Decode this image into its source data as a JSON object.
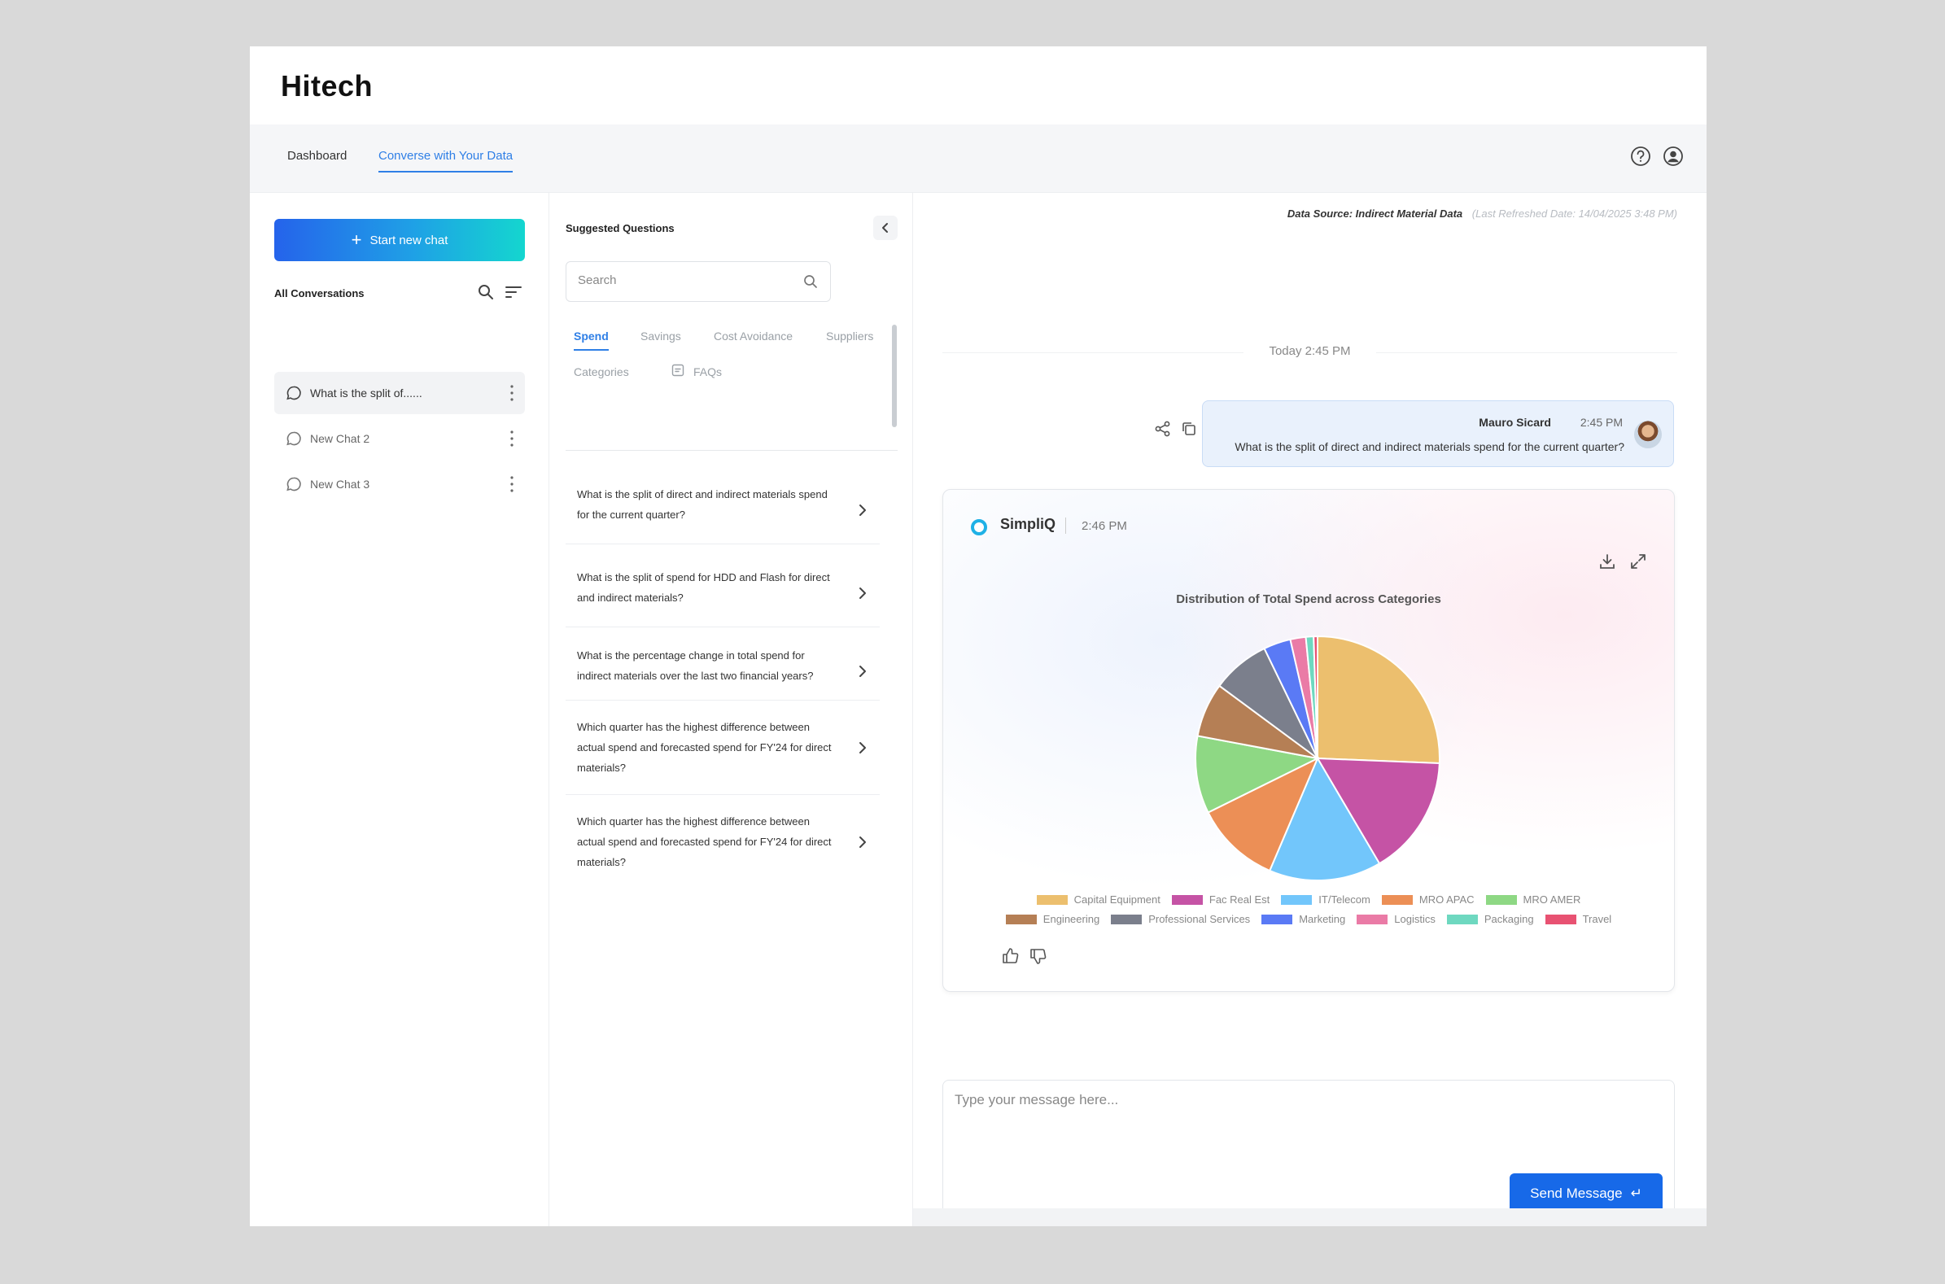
{
  "app": {
    "brand": "Hitech"
  },
  "nav": {
    "tabs": [
      {
        "label": "Dashboard",
        "active": false
      },
      {
        "label": "Converse with Your Data",
        "active": true
      }
    ],
    "icons": [
      "help-icon",
      "user-account-icon"
    ]
  },
  "sidebar": {
    "new_chat_label": "Start new chat",
    "all_conversations_label": "All Conversations",
    "conversations": [
      {
        "label": "What is the split of......",
        "active": true
      },
      {
        "label": "New Chat 2",
        "active": false
      },
      {
        "label": "New Chat 3",
        "active": false
      }
    ]
  },
  "suggested": {
    "title": "Suggested Questions",
    "search_placeholder": "Search",
    "tabs": [
      {
        "label": "Spend",
        "active": true
      },
      {
        "label": "Savings",
        "active": false
      },
      {
        "label": "Cost Avoidance",
        "active": false
      },
      {
        "label": "Suppliers",
        "active": false
      },
      {
        "label": "Categories",
        "active": false
      },
      {
        "label": "FAQs",
        "active": false
      }
    ],
    "questions": [
      "What is the split of direct and indirect materials spend for the current quarter?",
      "What is the split of spend for HDD and Flash for direct and indirect materials?",
      "What is the percentage change in total spend for indirect materials over the last two financial years?",
      "Which quarter has the highest difference between actual spend and forecasted spend for FY'24 for direct materials?",
      "Which quarter has the highest difference between actual spend and forecasted spend for FY'24 for direct materials?"
    ]
  },
  "chat": {
    "data_source": "Data Source: Indirect Material Data",
    "last_refreshed": "(Last Refreshed Date: 14/04/2025  3:48 PM)",
    "date_divider": "Today 2:45 PM",
    "user_message": {
      "name": "Mauro Sicard",
      "time": "2:45 PM",
      "text": "What is the split of direct and indirect materials spend for the current quarter?"
    },
    "bot": {
      "name": "SimpliQ",
      "time": "2:46 PM"
    },
    "composer_placeholder": "Type your message here...",
    "send_label": "Send Message",
    "send_icon": "↵"
  },
  "colors": {
    "accent": "#2f7fe6",
    "send_button": "#1769e8",
    "gradient_start": "#2563eb",
    "gradient_end": "#14d6cf"
  },
  "chart_data": {
    "type": "pie",
    "title": "Distribution of Total Spend across Categories",
    "categories": [
      "Capital Equipment",
      "Fac Real Est",
      "IT/Telecom",
      "MRO APAC",
      "MRO AMER",
      "Engineering",
      "Professional Services",
      "Marketing",
      "Logistics",
      "Packaging",
      "Travel"
    ],
    "values": [
      25,
      15.5,
      14.5,
      11,
      10,
      7,
      7.5,
      3.5,
      2,
      1,
      0.5
    ],
    "colors": [
      "#ecbf6e",
      "#c553a5",
      "#72c6fb",
      "#ec8f56",
      "#8ed884",
      "#b57f55",
      "#7b7f8c",
      "#5a7af5",
      "#ea7ba6",
      "#6ed8c0",
      "#e85272"
    ],
    "legend_position": "bottom"
  }
}
